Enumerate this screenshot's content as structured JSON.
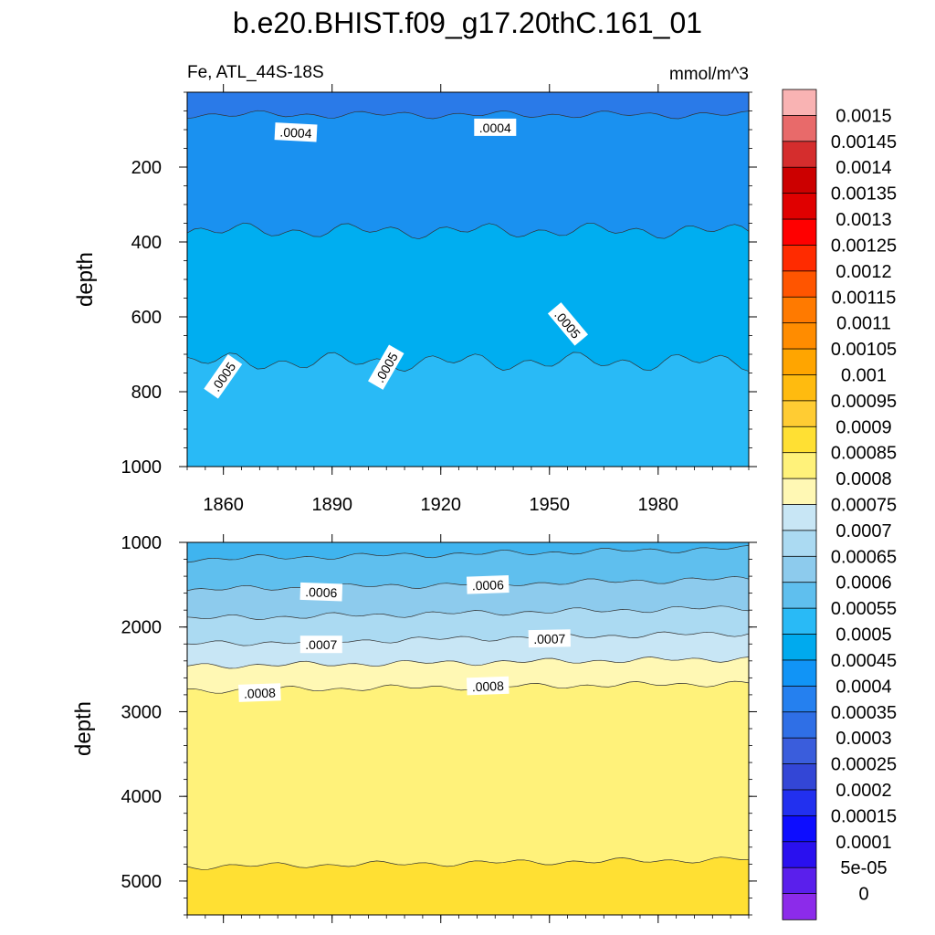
{
  "chart_data": {
    "type": "contour",
    "title": "b.e20.BHIST.f09_g17.20thC.161_01",
    "left_label": "Fe, ATL_44S-18S",
    "units": "mmol/m^3",
    "colorbar": {
      "levels": [
        "0.0015",
        "0.00145",
        "0.0014",
        "0.00135",
        "0.0013",
        "0.00125",
        "0.0012",
        "0.00115",
        "0.0011",
        "0.00105",
        "0.001",
        "0.00095",
        "0.0009",
        "0.00085",
        "0.0008",
        "0.00075",
        "0.0007",
        "0.00065",
        "0.0006",
        "0.00055",
        "0.0005",
        "0.00045",
        "0.0004",
        "0.00035",
        "0.0003",
        "0.00025",
        "0.0002",
        "0.00015",
        "0.0001",
        "5e-05",
        "0"
      ],
      "colors": [
        "#f9b3b3",
        "#e86a6a",
        "#d52d2d",
        "#cc0000",
        "#e00000",
        "#ff0000",
        "#ff2b00",
        "#ff5500",
        "#ff7a00",
        "#ff8c00",
        "#ffa500",
        "#ffbb0f",
        "#ffcc33",
        "#ffe033",
        "#fff27a",
        "#fff8b4",
        "#c8e6f5",
        "#abdaf2",
        "#8dcbed",
        "#5fbfee",
        "#29baf6",
        "#00aaee",
        "#1194f6",
        "#2580ef",
        "#2f6fe6",
        "#3a5ddc",
        "#3346d6",
        "#2230ef",
        "#0d0dff",
        "#2a10ef",
        "#5a1fec",
        "#8c2bea"
      ]
    },
    "panels": [
      {
        "name": "upper",
        "xlim": [
          1850,
          2005
        ],
        "ylim": [
          0,
          1000
        ],
        "xticks": [
          1860,
          1890,
          1920,
          1950,
          1980
        ],
        "yticks": [
          200,
          400,
          600,
          800,
          1000
        ],
        "ylabel": "depth",
        "fills": [
          {
            "top": 0,
            "color": "#2a7ae8"
          },
          {
            "top": 60,
            "color": "#1a91f0"
          },
          {
            "top": 370,
            "color": "#00aef0"
          },
          {
            "top": 720,
            "color": "#29baf6"
          }
        ],
        "contour_labels": [
          {
            "text": ".0004",
            "x": 1880,
            "depth": 108,
            "angle": 3
          },
          {
            "text": ".0004",
            "x": 1935,
            "depth": 95,
            "angle": 0
          },
          {
            "text": ".0005",
            "x": 1860,
            "depth": 760,
            "angle": -55
          },
          {
            "text": ".0005",
            "x": 1905,
            "depth": 735,
            "angle": -60
          },
          {
            "text": ".0005",
            "x": 1955,
            "depth": 620,
            "angle": 50
          }
        ]
      },
      {
        "name": "lower",
        "xlim": [
          1850,
          2005
        ],
        "ylim": [
          1000,
          5400
        ],
        "xticks": [
          1860,
          1890,
          1920,
          1950,
          1980
        ],
        "yticks": [
          1000,
          2000,
          3000,
          4000,
          5000
        ],
        "ylabel": "depth",
        "fills": [
          {
            "top": 1000,
            "color": "#3fb4ef"
          },
          {
            "top": 1200,
            "color": "#5fbfee"
          },
          {
            "top": 1560,
            "color": "#8dcbed"
          },
          {
            "top": 1900,
            "color": "#abdaf2"
          },
          {
            "top": 2200,
            "color": "#c8e6f5"
          },
          {
            "top": 2460,
            "color": "#fff8b4"
          },
          {
            "top": 2750,
            "color": "#fff27a"
          },
          {
            "top": 4830,
            "color": "#ffe033"
          }
        ],
        "contour_labels": [
          {
            "text": ".0006",
            "x": 1887,
            "depth": 1590,
            "angle": 2
          },
          {
            "text": ".0006",
            "x": 1933,
            "depth": 1505,
            "angle": -2
          },
          {
            "text": ".0007",
            "x": 1887,
            "depth": 2210,
            "angle": 0
          },
          {
            "text": ".0007",
            "x": 1950,
            "depth": 2140,
            "angle": -1
          },
          {
            "text": ".0008",
            "x": 1870,
            "depth": 2780,
            "angle": -2
          },
          {
            "text": ".0008",
            "x": 1933,
            "depth": 2700,
            "angle": -2
          }
        ]
      }
    ]
  }
}
